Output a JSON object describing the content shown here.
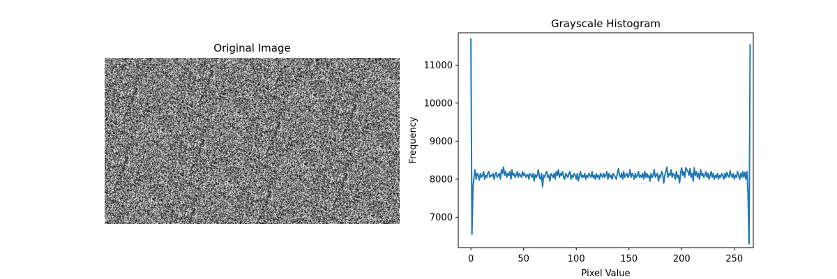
{
  "figure": {
    "left_panel": {
      "title": "Original Image"
    }
  },
  "chart_data": {
    "type": "line",
    "title": "Grayscale Histogram",
    "xlabel": "Pixel Value",
    "ylabel": "Frequency",
    "xlim": [
      -12,
      268
    ],
    "ylim": [
      6200,
      11850
    ],
    "x_ticks": [
      0,
      50,
      100,
      150,
      200,
      250
    ],
    "y_ticks": [
      7000,
      8000,
      9000,
      10000,
      11000
    ],
    "grid": false,
    "line_color": "#1f77b4",
    "series": [
      {
        "values": [
          11700,
          6550,
          7800,
          8050,
          8250,
          8000,
          8150,
          8100,
          7980,
          8150,
          8050,
          8100,
          8200,
          8000,
          8100,
          8050,
          8150,
          8200,
          8050,
          8100,
          8080,
          8150,
          8000,
          8120,
          8180,
          8050,
          8100,
          8150,
          8000,
          8250,
          8150,
          8320,
          8100,
          8200,
          8050,
          8150,
          8100,
          8200,
          8000,
          8250,
          8100,
          8150,
          8050,
          8100,
          8200,
          8050,
          8150,
          8100,
          8050,
          8200,
          8100,
          8150,
          8050,
          8100,
          8120,
          8000,
          8150,
          8100,
          8050,
          8150,
          7950,
          8120,
          8050,
          8100,
          8250,
          8050,
          8000,
          8150,
          7800,
          8100,
          8050,
          8150,
          8200,
          8050,
          8100,
          7950,
          8150,
          8100,
          8050,
          8150,
          8000,
          8200,
          8100,
          8250,
          8050,
          8150,
          8100,
          8200,
          8050,
          8000,
          8150,
          8100,
          8050,
          8150,
          8200,
          8000,
          8100,
          8050,
          8150,
          8100,
          8000,
          8150,
          7950,
          8100,
          8200,
          8050,
          8100,
          8050,
          8150,
          8000,
          8100,
          8050,
          8150,
          8100,
          8050,
          8200,
          8050,
          8100,
          8000,
          8150,
          8050,
          8100,
          8000,
          8150,
          8100,
          8050,
          8150,
          8050,
          8100,
          8200,
          8000,
          8150,
          8050,
          8100,
          8000,
          8150,
          8100,
          8050,
          8000,
          8150,
          8280,
          8100,
          8050,
          8150,
          8000,
          8200,
          8050,
          8100,
          8150,
          8050,
          8100,
          8250,
          8050,
          8150,
          8100,
          8000,
          8150,
          8050,
          8100,
          8200,
          8050,
          8100,
          8050,
          8150,
          8000,
          8200,
          8050,
          8150,
          8050,
          8100,
          7950,
          8150,
          8050,
          8100,
          8250,
          8050,
          8100,
          8150,
          7950,
          8100,
          8050,
          8200,
          8150,
          7900,
          8100,
          8200,
          8320,
          8050,
          8150,
          8100,
          8250,
          8050,
          8150,
          8100,
          8000,
          8200,
          8050,
          8100,
          7900,
          8150,
          8300,
          8100,
          8200,
          8050,
          8300,
          8250,
          8200,
          8100,
          8280,
          8050,
          8150,
          7950,
          8300,
          8100,
          8200,
          8050,
          8150,
          8000,
          8250,
          8100,
          8150,
          8050,
          8100,
          8200,
          8050,
          8150,
          8000,
          8100,
          8200,
          8050,
          8150,
          8000,
          8100,
          8050,
          8150,
          8000,
          8100,
          8050,
          8150,
          8100,
          8000,
          8150,
          8050,
          8180,
          8100,
          8050,
          8220,
          8100,
          8050,
          8150,
          8000,
          8100,
          8050,
          8200,
          8100,
          8000,
          8150,
          8050,
          8200,
          8050,
          8180,
          8000,
          8200,
          7600,
          6300,
          11550
        ]
      }
    ]
  }
}
